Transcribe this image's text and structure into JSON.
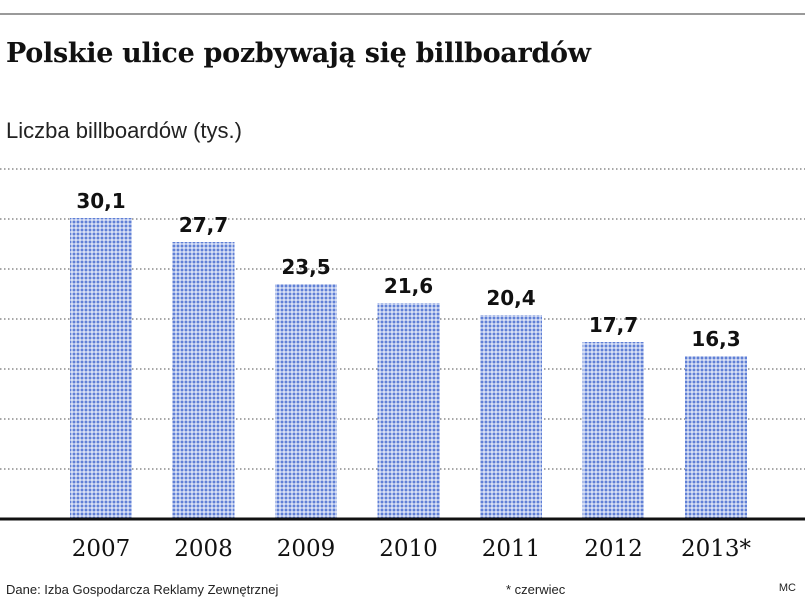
{
  "chart_data": {
    "type": "bar",
    "title": "Polskie ulice pozbywają się billboardów",
    "subtitle": "Liczba billboardów (tys.)",
    "categories": [
      "2007",
      "2008",
      "2009",
      "2010",
      "2011",
      "2012",
      "2013*"
    ],
    "values": [
      30.1,
      27.7,
      23.5,
      21.6,
      20.4,
      17.7,
      16.3
    ],
    "value_labels": [
      "30,1",
      "27,7",
      "23,5",
      "21,6",
      "20,4",
      "17,7",
      "16,3"
    ],
    "ylim": [
      0,
      35
    ],
    "grid": true,
    "xlabel": "",
    "ylabel": ""
  },
  "footer": {
    "source": "Dane: Izba Gospodarcza Reklamy Zewnętrznej",
    "note": "* czerwiec",
    "author": "MC"
  },
  "colors": {
    "bar_dot": "#5f7fd6",
    "grid": "#8a8a8a",
    "axis": "#111111"
  }
}
